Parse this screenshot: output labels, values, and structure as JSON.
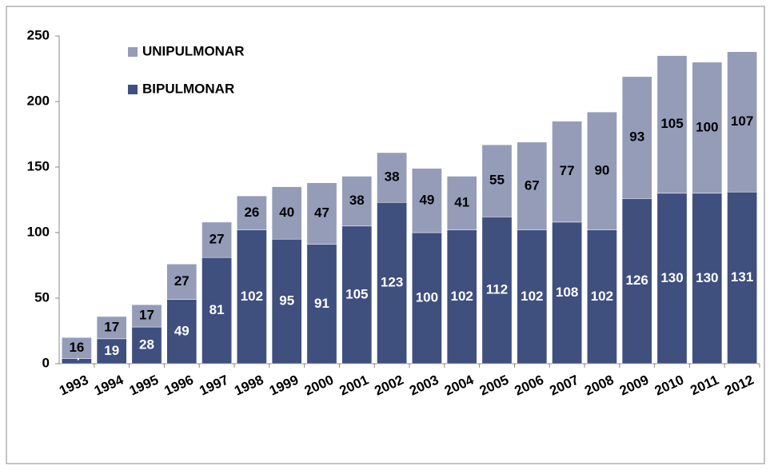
{
  "chart_data": {
    "type": "stacked_bar",
    "categories": [
      "1993",
      "1994",
      "1995",
      "1996",
      "1997",
      "1998",
      "1999",
      "2000",
      "2001",
      "2002",
      "2003",
      "2004",
      "2005",
      "2006",
      "2007",
      "2008",
      "2009",
      "2010",
      "2011",
      "2012"
    ],
    "series": [
      {
        "name": "BIPULMONAR",
        "color": "#3f4f7e",
        "values": [
          4,
          19,
          28,
          49,
          81,
          102,
          95,
          91,
          105,
          123,
          100,
          102,
          112,
          102,
          108,
          102,
          126,
          130,
          130,
          131
        ]
      },
      {
        "name": "UNIPULMONAR",
        "color": "#949cb8",
        "values": [
          16,
          17,
          17,
          27,
          27,
          26,
          40,
          47,
          38,
          38,
          49,
          41,
          55,
          67,
          77,
          90,
          93,
          105,
          100,
          107
        ]
      }
    ],
    "ylim": [
      0,
      250
    ],
    "yticks": [
      0,
      50,
      100,
      150,
      200,
      250
    ],
    "grid": false,
    "legend": "top-left"
  }
}
